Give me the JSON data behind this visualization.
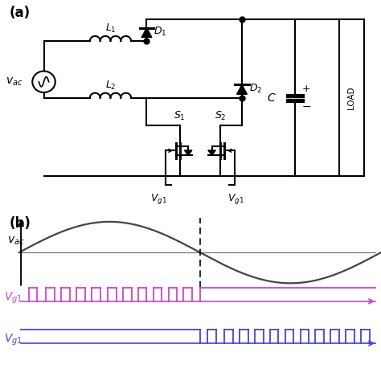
{
  "title_a": "(a)",
  "title_b": "(b)",
  "vac_label": "$v_{ac}$",
  "vg1_label": "$V_{g1}$",
  "vg2_label": "$V_{g1}$",
  "L1_label": "$L_1$",
  "L2_label": "$L_2$",
  "D1_label": "$D_1$",
  "D2_label": "$D_2$",
  "S1_label": "$S_1$",
  "S2_label": "$S_2$",
  "C_label": "$C$",
  "LOAD_label": "LOAD",
  "bg_color": "#ffffff",
  "line_color": "#000000",
  "pink_color": "#cc44cc",
  "blue_color": "#4444cc",
  "sine_color": "#444444"
}
